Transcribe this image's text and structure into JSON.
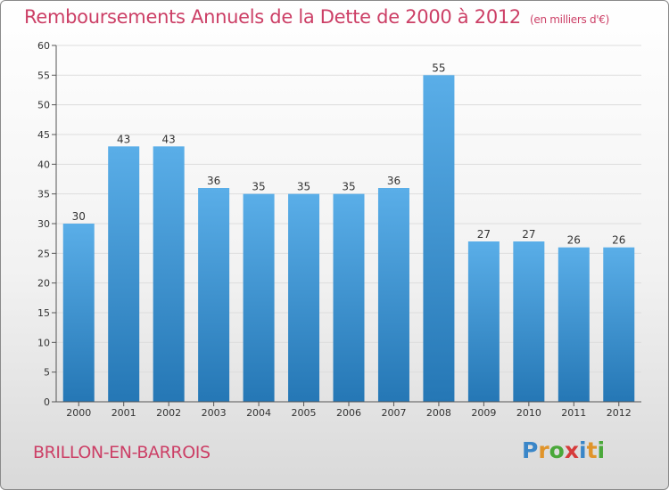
{
  "title": "Remboursements Annuels de la Dette de 2000 à 2012",
  "subtitle": "(en milliers d'€)",
  "commune": "BRILLON-EN-BARROIS",
  "logo": {
    "letters": [
      "P",
      "r",
      "o",
      "x",
      "i",
      "t",
      "i"
    ],
    "colors": [
      "#3a86c8",
      "#e0942a",
      "#4aa83a",
      "#d63b3b",
      "#3a86c8",
      "#e0942a",
      "#4aa83a"
    ]
  },
  "colors": {
    "title": "#cc3f66",
    "bar_top": "#5aaee8",
    "bar_bottom": "#2577b5",
    "grid": "#dddddd"
  },
  "chart_data": {
    "type": "bar",
    "title": "Remboursements Annuels de la Dette de 2000 à 2012",
    "subtitle": "(en milliers d'€)",
    "categories": [
      "2000",
      "2001",
      "2002",
      "2003",
      "2004",
      "2005",
      "2006",
      "2007",
      "2008",
      "2009",
      "2010",
      "2011",
      "2012"
    ],
    "values": [
      30,
      43,
      43,
      36,
      35,
      35,
      35,
      36,
      55,
      27,
      27,
      26,
      26
    ],
    "ylim": [
      0,
      60
    ],
    "yticks": [
      0,
      5,
      10,
      15,
      20,
      25,
      30,
      35,
      40,
      45,
      50,
      55,
      60
    ],
    "grid": true,
    "xlabel": "",
    "ylabel": ""
  }
}
